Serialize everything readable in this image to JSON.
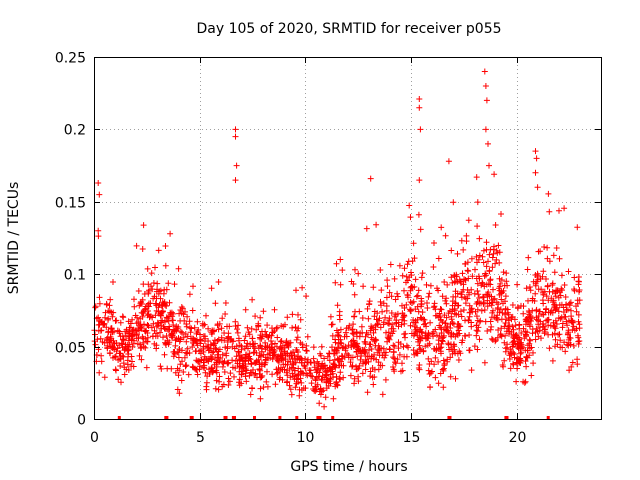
{
  "chart_data": {
    "type": "scatter",
    "title": "Day 105 of 2020, SRMTID for receiver p055",
    "xlabel": "GPS time / hours",
    "ylabel": "SRMTID / TECUs",
    "xlim": [
      0,
      24
    ],
    "ylim": [
      0,
      0.25
    ],
    "x_ticks": [
      0,
      5,
      10,
      15,
      20
    ],
    "x_tick_labels": [
      "0",
      "5",
      "10",
      "15",
      "20"
    ],
    "y_ticks": [
      0,
      0.05,
      0.1,
      0.15,
      0.2,
      0.25
    ],
    "y_tick_labels": [
      "0",
      "0.05",
      "0.1",
      "0.15",
      "0.2",
      "0.25"
    ],
    "grid": true,
    "marker": "plus",
    "series_color": "#ff0000",
    "notable_points": [
      {
        "x": 0.2,
        "y": 0.163
      },
      {
        "x": 0.25,
        "y": 0.155
      },
      {
        "x": 0.2,
        "y": 0.13
      },
      {
        "x": 3.6,
        "y": 0.128
      },
      {
        "x": 6.7,
        "y": 0.2
      },
      {
        "x": 6.7,
        "y": 0.195
      },
      {
        "x": 6.75,
        "y": 0.175
      },
      {
        "x": 6.7,
        "y": 0.165
      },
      {
        "x": 13.1,
        "y": 0.166
      },
      {
        "x": 15.4,
        "y": 0.221
      },
      {
        "x": 15.4,
        "y": 0.215
      },
      {
        "x": 15.45,
        "y": 0.2
      },
      {
        "x": 15.4,
        "y": 0.165
      },
      {
        "x": 16.8,
        "y": 0.178
      },
      {
        "x": 18.5,
        "y": 0.24
      },
      {
        "x": 18.55,
        "y": 0.23
      },
      {
        "x": 18.6,
        "y": 0.22
      },
      {
        "x": 18.55,
        "y": 0.2
      },
      {
        "x": 18.65,
        "y": 0.19
      },
      {
        "x": 18.7,
        "y": 0.175
      },
      {
        "x": 20.9,
        "y": 0.185
      },
      {
        "x": 20.95,
        "y": 0.18
      },
      {
        "x": 20.9,
        "y": 0.17
      },
      {
        "x": 21.0,
        "y": 0.16
      }
    ],
    "baseline_profile": {
      "x": [
        0,
        0.5,
        1,
        1.5,
        2,
        2.5,
        3,
        3.5,
        4,
        4.5,
        5,
        5.5,
        6,
        6.5,
        7,
        7.5,
        8,
        8.5,
        9,
        9.5,
        10,
        10.5,
        11,
        11.5,
        12,
        12.5,
        13,
        13.5,
        14,
        14.5,
        15,
        15.5,
        16,
        16.5,
        17,
        17.5,
        18,
        18.5,
        19,
        19.5,
        20,
        20.5,
        21,
        21.5,
        22,
        22.5,
        23
      ],
      "y_mean": [
        0.06,
        0.065,
        0.055,
        0.05,
        0.06,
        0.07,
        0.075,
        0.065,
        0.05,
        0.055,
        0.045,
        0.045,
        0.045,
        0.05,
        0.035,
        0.045,
        0.045,
        0.045,
        0.045,
        0.04,
        0.04,
        0.03,
        0.03,
        0.045,
        0.05,
        0.045,
        0.05,
        0.055,
        0.055,
        0.06,
        0.075,
        0.065,
        0.06,
        0.055,
        0.065,
        0.08,
        0.085,
        0.09,
        0.085,
        0.065,
        0.05,
        0.055,
        0.075,
        0.08,
        0.075,
        0.065,
        0.065
      ],
      "y_spread": [
        0.02,
        0.025,
        0.02,
        0.02,
        0.02,
        0.025,
        0.025,
        0.025,
        0.02,
        0.02,
        0.02,
        0.02,
        0.02,
        0.02,
        0.015,
        0.02,
        0.02,
        0.02,
        0.02,
        0.02,
        0.02,
        0.015,
        0.015,
        0.025,
        0.025,
        0.025,
        0.03,
        0.03,
        0.03,
        0.03,
        0.035,
        0.035,
        0.03,
        0.03,
        0.03,
        0.035,
        0.035,
        0.035,
        0.035,
        0.025,
        0.02,
        0.025,
        0.03,
        0.03,
        0.03,
        0.025,
        0.025
      ]
    },
    "zero_value_rug_x": [
      1.2,
      3.4,
      3.45,
      4.6,
      4.65,
      6.2,
      6.25,
      6.6,
      6.65,
      7.6,
      8.8,
      9.6,
      10.6,
      10.7,
      11.3,
      16.8,
      16.85,
      19.5,
      19.55,
      21.5
    ],
    "point_count": 2200
  }
}
